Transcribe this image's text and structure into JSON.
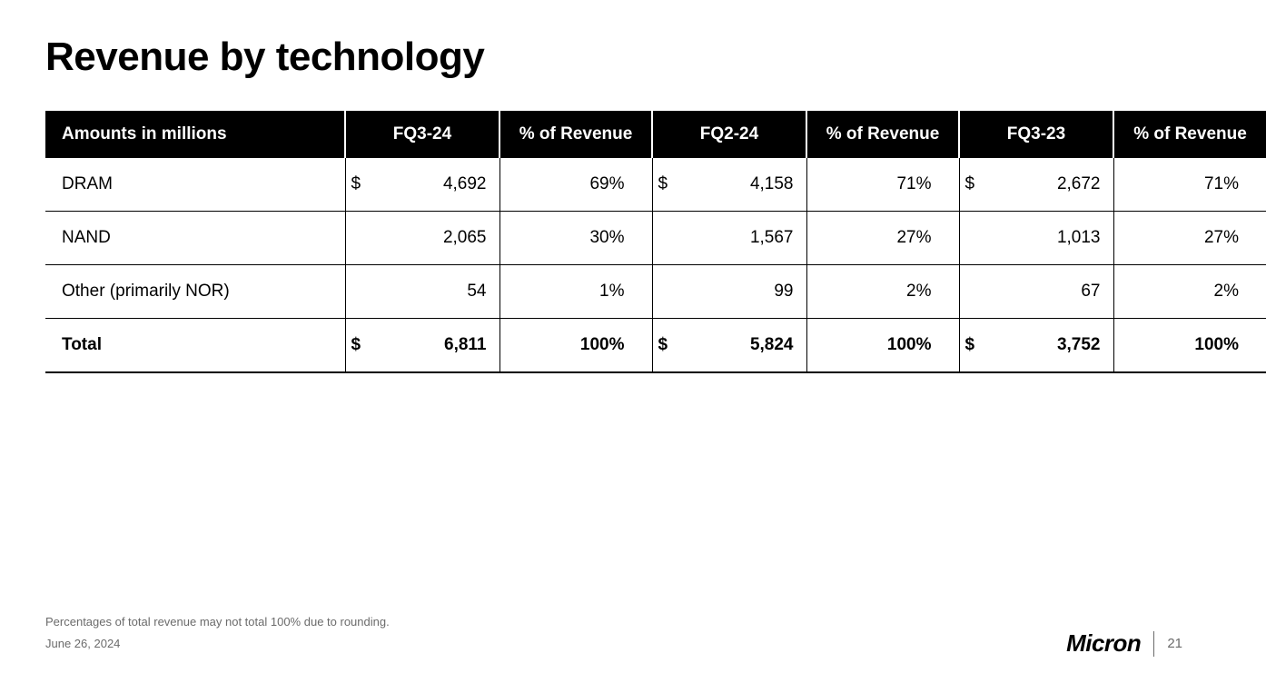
{
  "title": "Revenue by technology",
  "table": {
    "type": "table",
    "header_bg": "#000000",
    "header_fg": "#ffffff",
    "border_color": "#000000",
    "columns": [
      "Amounts in millions",
      "FQ3-24",
      "% of Revenue",
      "FQ2-24",
      "% of Revenue",
      "FQ3-23",
      "% of Revenue"
    ],
    "rows": [
      {
        "label": "DRAM",
        "bold": false,
        "fq3_24": "4,692",
        "fq3_24_dollar": "$",
        "fq3_24_pct": "69%",
        "fq2_24": "4,158",
        "fq2_24_dollar": "$",
        "fq2_24_pct": "71%",
        "fq3_23": "2,672",
        "fq3_23_dollar": "$",
        "fq3_23_pct": "71%"
      },
      {
        "label": "NAND",
        "bold": false,
        "fq3_24": "2,065",
        "fq3_24_dollar": "",
        "fq3_24_pct": "30%",
        "fq2_24": "1,567",
        "fq2_24_dollar": "",
        "fq2_24_pct": "27%",
        "fq3_23": "1,013",
        "fq3_23_dollar": "",
        "fq3_23_pct": "27%"
      },
      {
        "label": "Other (primarily NOR)",
        "bold": false,
        "fq3_24": "54",
        "fq3_24_dollar": "",
        "fq3_24_pct": "1%",
        "fq2_24": "99",
        "fq2_24_dollar": "",
        "fq2_24_pct": "2%",
        "fq3_23": "67",
        "fq3_23_dollar": "",
        "fq3_23_pct": "2%"
      },
      {
        "label": "Total",
        "bold": true,
        "fq3_24": "6,811",
        "fq3_24_dollar": "$",
        "fq3_24_pct": "100%",
        "fq2_24": "5,824",
        "fq2_24_dollar": "$",
        "fq2_24_pct": "100%",
        "fq3_23": "3,752",
        "fq3_23_dollar": "$",
        "fq3_23_pct": "100%"
      }
    ]
  },
  "footnote": "Percentages of total revenue may not total 100% due to rounding.",
  "date": "June 26, 2024",
  "brand": "Micron",
  "page_number": "21",
  "colors": {
    "background": "#ffffff",
    "text": "#000000",
    "muted": "#6b6b6b"
  }
}
